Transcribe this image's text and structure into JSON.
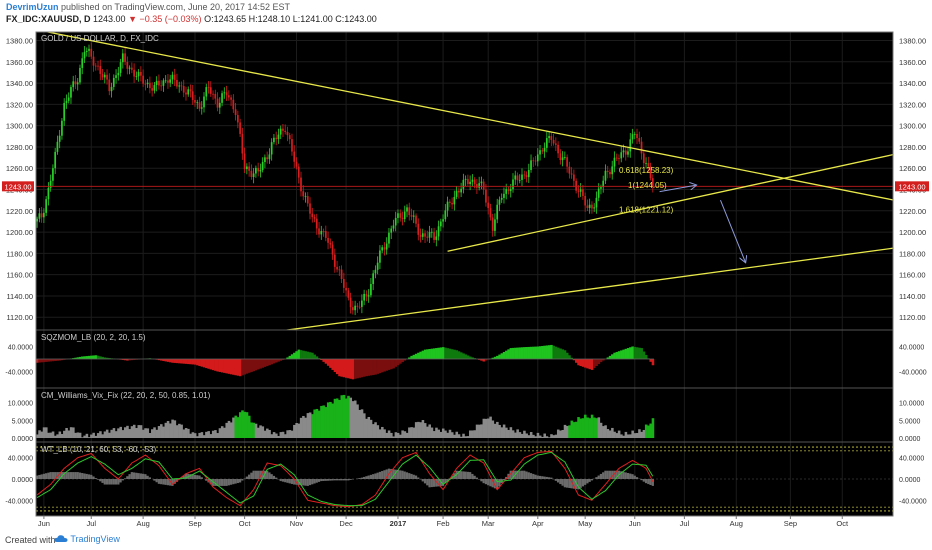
{
  "header": {
    "author": "DevrimUzun",
    "published_text": "published on TradingView.com, June 20, 2017 14:52 EST",
    "symbol": "FX_IDC:XAUUSD, D",
    "last": "1243.00",
    "change": "▼ −0.35 (−0.03%)",
    "open": "O:1243.65",
    "high": "H:1248.10",
    "low": "L:1241.00",
    "close": "C:1243.00"
  },
  "footer": {
    "created_with": "Created with",
    "brand": "TradingView"
  },
  "colors": {
    "background": "#000000",
    "up": "#2bd12b",
    "down": "#d81e1e",
    "trendline": "#e8e84a",
    "price_line": "#c41a1a",
    "price_tag": "#d41f1f",
    "arrow": "#8c9ad8",
    "signal_red": "#e02020",
    "signal_green": "#2ec72e",
    "gray_area": "#8a8a8a"
  },
  "chart_data": [
    {
      "type": "candlestick",
      "title": "GOLD / US DOLLAR, D, FX_IDC",
      "x_labels": [
        "Jun",
        "Jul",
        "Aug",
        "Sep",
        "Oct",
        "Nov",
        "Dec",
        "2017",
        "Feb",
        "Mar",
        "Apr",
        "May",
        "Jun",
        "Jul",
        "Aug",
        "Sep",
        "Oct"
      ],
      "x_ticks_index": [
        3,
        24,
        47,
        70,
        92,
        115,
        137,
        160,
        180,
        200,
        222,
        243,
        265,
        287,
        310,
        334,
        357
      ],
      "y_ticks": [
        1120,
        1140,
        1160,
        1180,
        1200,
        1220,
        1240,
        1260,
        1280,
        1300,
        1320,
        1340,
        1360,
        1380
      ],
      "ylim": [
        1108,
        1388
      ],
      "last_price": "1243.00",
      "price_anchors": [
        [
          0,
          1210
        ],
        [
          2,
          1215
        ],
        [
          5,
          1240
        ],
        [
          8,
          1270
        ],
        [
          12,
          1320
        ],
        [
          18,
          1345
        ],
        [
          21,
          1372
        ],
        [
          27,
          1355
        ],
        [
          32,
          1335
        ],
        [
          38,
          1362
        ],
        [
          45,
          1345
        ],
        [
          52,
          1335
        ],
        [
          58,
          1345
        ],
        [
          65,
          1335
        ],
        [
          72,
          1318
        ],
        [
          76,
          1335
        ],
        [
          80,
          1322
        ],
        [
          84,
          1330
        ],
        [
          88,
          1315
        ],
        [
          92,
          1260
        ],
        [
          98,
          1255
        ],
        [
          104,
          1282
        ],
        [
          110,
          1300
        ],
        [
          116,
          1250
        ],
        [
          122,
          1212
        ],
        [
          128,
          1195
        ],
        [
          134,
          1162
        ],
        [
          138,
          1135
        ],
        [
          142,
          1128
        ],
        [
          146,
          1140
        ],
        [
          152,
          1178
        ],
        [
          158,
          1208
        ],
        [
          164,
          1222
        ],
        [
          170,
          1198
        ],
        [
          176,
          1195
        ],
        [
          180,
          1215
        ],
        [
          186,
          1238
        ],
        [
          192,
          1250
        ],
        [
          198,
          1240
        ],
        [
          202,
          1205
        ],
        [
          206,
          1235
        ],
        [
          212,
          1248
        ],
        [
          218,
          1258
        ],
        [
          224,
          1280
        ],
        [
          228,
          1288
        ],
        [
          234,
          1265
        ],
        [
          240,
          1240
        ],
        [
          244,
          1222
        ],
        [
          248,
          1230
        ],
        [
          252,
          1255
        ],
        [
          257,
          1268
        ],
        [
          262,
          1280
        ],
        [
          265,
          1293
        ],
        [
          270,
          1265
        ],
        [
          273,
          1243
        ]
      ],
      "trendlines": [
        {
          "start": [
            0,
            1390
          ],
          "end": [
            380,
            1230
          ]
        },
        {
          "start": [
            182,
            1182
          ],
          "end": [
            380,
            1273
          ]
        },
        {
          "start": [
            90,
            1102
          ],
          "end": [
            380,
            1185
          ]
        }
      ],
      "fib_levels": [
        {
          "label": "0.618(1258.23)",
          "price": 1258.23
        },
        {
          "label": "1(1244.05)",
          "price": 1244.05
        },
        {
          "label": "1.618(1221.12)",
          "price": 1221.12
        }
      ],
      "arrows": [
        {
          "from": [
            276,
            1238
          ],
          "to": [
            292,
            1244
          ]
        },
        {
          "from": [
            303,
            1230
          ],
          "to": [
            314,
            1172
          ]
        }
      ]
    },
    {
      "type": "area",
      "title": "SQZMOM_LB (20, 2, 20, 1.5)",
      "y_ticks": [
        "40.0000",
        "-40.0000"
      ],
      "y_tick_values": [
        40,
        -40
      ],
      "ylim": [
        -80,
        80
      ],
      "anchors": [
        [
          0,
          -12
        ],
        [
          10,
          -5
        ],
        [
          20,
          8
        ],
        [
          26,
          12
        ],
        [
          30,
          5
        ],
        [
          40,
          -5
        ],
        [
          50,
          2
        ],
        [
          60,
          -12
        ],
        [
          70,
          -18
        ],
        [
          80,
          -40
        ],
        [
          90,
          -55
        ],
        [
          100,
          -28
        ],
        [
          110,
          0
        ],
        [
          116,
          30
        ],
        [
          122,
          20
        ],
        [
          128,
          -15
        ],
        [
          134,
          -55
        ],
        [
          140,
          -65
        ],
        [
          146,
          -55
        ],
        [
          150,
          -50
        ],
        [
          158,
          -30
        ],
        [
          166,
          10
        ],
        [
          172,
          30
        ],
        [
          180,
          38
        ],
        [
          186,
          28
        ],
        [
          192,
          8
        ],
        [
          198,
          -8
        ],
        [
          204,
          10
        ],
        [
          210,
          35
        ],
        [
          216,
          38
        ],
        [
          222,
          40
        ],
        [
          228,
          45
        ],
        [
          234,
          28
        ],
        [
          240,
          -20
        ],
        [
          246,
          -35
        ],
        [
          250,
          -10
        ],
        [
          256,
          20
        ],
        [
          264,
          40
        ],
        [
          268,
          35
        ],
        [
          273,
          -20
        ]
      ]
    },
    {
      "type": "area",
      "title": "CM_Williams_Vix_Fix (22, 20, 2, 50, 0.85, 1.01)",
      "y_ticks": [
        "10.0000",
        "5.0000",
        "0.0000"
      ],
      "y_tick_values": [
        10,
        5,
        0
      ],
      "ylim": [
        0,
        13
      ],
      "anchors": [
        [
          0,
          1
        ],
        [
          3,
          3
        ],
        [
          6,
          1.5
        ],
        [
          9,
          1
        ],
        [
          15,
          3
        ],
        [
          20,
          0.5
        ],
        [
          25,
          1
        ],
        [
          35,
          2.5
        ],
        [
          45,
          3.5
        ],
        [
          50,
          2
        ],
        [
          60,
          5
        ],
        [
          65,
          3
        ],
        [
          70,
          1
        ],
        [
          80,
          2
        ],
        [
          88,
          6
        ],
        [
          92,
          8
        ],
        [
          96,
          4
        ],
        [
          100,
          3
        ],
        [
          106,
          1
        ],
        [
          112,
          2
        ],
        [
          118,
          6
        ],
        [
          124,
          8
        ],
        [
          130,
          10
        ],
        [
          136,
          12
        ],
        [
          140,
          11
        ],
        [
          146,
          6
        ],
        [
          152,
          3
        ],
        [
          158,
          1
        ],
        [
          164,
          2
        ],
        [
          170,
          5
        ],
        [
          176,
          2.5
        ],
        [
          182,
          2
        ],
        [
          190,
          0.5
        ],
        [
          200,
          6
        ],
        [
          204,
          4
        ],
        [
          212,
          2
        ],
        [
          220,
          1
        ],
        [
          228,
          0.5
        ],
        [
          236,
          4
        ],
        [
          242,
          6
        ],
        [
          248,
          6
        ],
        [
          252,
          3
        ],
        [
          260,
          1
        ],
        [
          268,
          2
        ],
        [
          273,
          5
        ]
      ],
      "green_ranges": [
        [
          88,
          96
        ],
        [
          122,
          138
        ],
        [
          236,
          248
        ],
        [
          270,
          273
        ]
      ]
    },
    {
      "type": "line",
      "title": "WT_LB (10, 21, 60, 53, -60, -53)",
      "y_ticks": [
        "40.0000",
        "0.0000",
        "-40.0000"
      ],
      "y_tick_values": [
        40,
        0,
        -40
      ],
      "ylim": [
        -62,
        62
      ],
      "levels": [
        60,
        53,
        -53,
        -60
      ],
      "series": [
        {
          "color": "red",
          "anchors": [
            [
              0,
              -30
            ],
            [
              6,
              -10
            ],
            [
              12,
              20
            ],
            [
              18,
              40
            ],
            [
              24,
              48
            ],
            [
              30,
              20
            ],
            [
              36,
              0
            ],
            [
              42,
              30
            ],
            [
              48,
              45
            ],
            [
              54,
              25
            ],
            [
              60,
              -10
            ],
            [
              66,
              10
            ],
            [
              72,
              20
            ],
            [
              78,
              -15
            ],
            [
              84,
              -35
            ],
            [
              90,
              -50
            ],
            [
              96,
              -20
            ],
            [
              102,
              30
            ],
            [
              108,
              25
            ],
            [
              114,
              0
            ],
            [
              120,
              -40
            ],
            [
              126,
              -45
            ],
            [
              132,
              -50
            ],
            [
              138,
              -52
            ],
            [
              144,
              -48
            ],
            [
              150,
              -30
            ],
            [
              156,
              10
            ],
            [
              162,
              40
            ],
            [
              168,
              50
            ],
            [
              174,
              10
            ],
            [
              180,
              -20
            ],
            [
              186,
              20
            ],
            [
              192,
              45
            ],
            [
              198,
              30
            ],
            [
              204,
              -20
            ],
            [
              210,
              10
            ],
            [
              216,
              40
            ],
            [
              222,
              50
            ],
            [
              228,
              52
            ],
            [
              234,
              20
            ],
            [
              240,
              -30
            ],
            [
              246,
              -40
            ],
            [
              252,
              -10
            ],
            [
              258,
              20
            ],
            [
              264,
              35
            ],
            [
              270,
              20
            ],
            [
              273,
              -5
            ]
          ]
        },
        {
          "color": "green",
          "anchors": [
            [
              0,
              -35
            ],
            [
              6,
              -20
            ],
            [
              12,
              10
            ],
            [
              18,
              30
            ],
            [
              24,
              42
            ],
            [
              30,
              28
            ],
            [
              36,
              8
            ],
            [
              42,
              20
            ],
            [
              48,
              38
            ],
            [
              54,
              32
            ],
            [
              60,
              0
            ],
            [
              66,
              2
            ],
            [
              72,
              15
            ],
            [
              78,
              -5
            ],
            [
              84,
              -25
            ],
            [
              90,
              -45
            ],
            [
              96,
              -32
            ],
            [
              102,
              18
            ],
            [
              108,
              28
            ],
            [
              114,
              8
            ],
            [
              120,
              -30
            ],
            [
              126,
              -42
            ],
            [
              132,
              -48
            ],
            [
              138,
              -50
            ],
            [
              144,
              -50
            ],
            [
              150,
              -38
            ],
            [
              156,
              -5
            ],
            [
              162,
              28
            ],
            [
              168,
              45
            ],
            [
              174,
              22
            ],
            [
              180,
              -10
            ],
            [
              186,
              8
            ],
            [
              192,
              35
            ],
            [
              198,
              36
            ],
            [
              204,
              -5
            ],
            [
              210,
              -2
            ],
            [
              216,
              28
            ],
            [
              222,
              45
            ],
            [
              228,
              50
            ],
            [
              234,
              32
            ],
            [
              240,
              -15
            ],
            [
              246,
              -38
            ],
            [
              252,
              -22
            ],
            [
              258,
              8
            ],
            [
              264,
              28
            ],
            [
              270,
              26
            ],
            [
              273,
              5
            ]
          ]
        }
      ]
    }
  ]
}
